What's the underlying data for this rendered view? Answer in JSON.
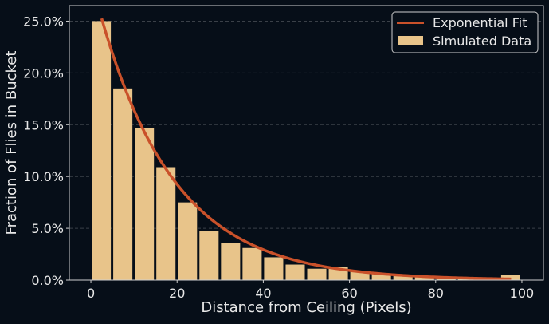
{
  "chart_data": {
    "type": "bar",
    "title": "",
    "xlabel": "Distance from Ceiling (Pixels)",
    "ylabel": "Fraction of Flies in Bucket",
    "xlim": [
      -5,
      105
    ],
    "ylim": [
      0,
      0.265
    ],
    "x_ticks": [
      0,
      20,
      40,
      60,
      80,
      100
    ],
    "y_ticks": [
      "0.0%",
      "5.0%",
      "10.0%",
      "15.0%",
      "20.0%",
      "25.0%"
    ],
    "y_tick_values": [
      0,
      0.05,
      0.1,
      0.15,
      0.2,
      0.25
    ],
    "grid": "horizontal dashed",
    "legend_position": "upper right",
    "bin_width": 5,
    "bin_starts": [
      0,
      5,
      10,
      15,
      20,
      25,
      30,
      35,
      40,
      45,
      50,
      55,
      60,
      65,
      70,
      75,
      80,
      85,
      90,
      95
    ],
    "series": [
      {
        "name": "Simulated Data",
        "type": "bar",
        "color": "#e8c48a",
        "values": [
          0.25,
          0.185,
          0.147,
          0.109,
          0.075,
          0.047,
          0.036,
          0.031,
          0.022,
          0.015,
          0.011,
          0.013,
          0.008,
          0.006,
          0.005,
          0.004,
          0.003,
          0.002,
          0.0015,
          0.005
        ]
      },
      {
        "name": "Exponential Fit",
        "type": "line",
        "color": "#c9512a",
        "x_range": [
          2.5,
          97.5
        ],
        "amplitude": 0.2526,
        "rate": 0.0574,
        "x0": 2.5
      }
    ]
  },
  "legend": {
    "items": [
      {
        "label": "Exponential Fit",
        "kind": "line",
        "color": "#c9512a"
      },
      {
        "label": "Simulated Data",
        "kind": "patch",
        "color": "#e8c48a"
      }
    ]
  },
  "axes": {
    "xlabel": "Distance from Ceiling (Pixels)",
    "ylabel": "Fraction of Flies in Bucket"
  },
  "colors": {
    "background": "#060e18",
    "axis": "#cfcfcf",
    "grid": "#3a4048",
    "bar": "#e8c48a",
    "fit": "#c9512a"
  }
}
